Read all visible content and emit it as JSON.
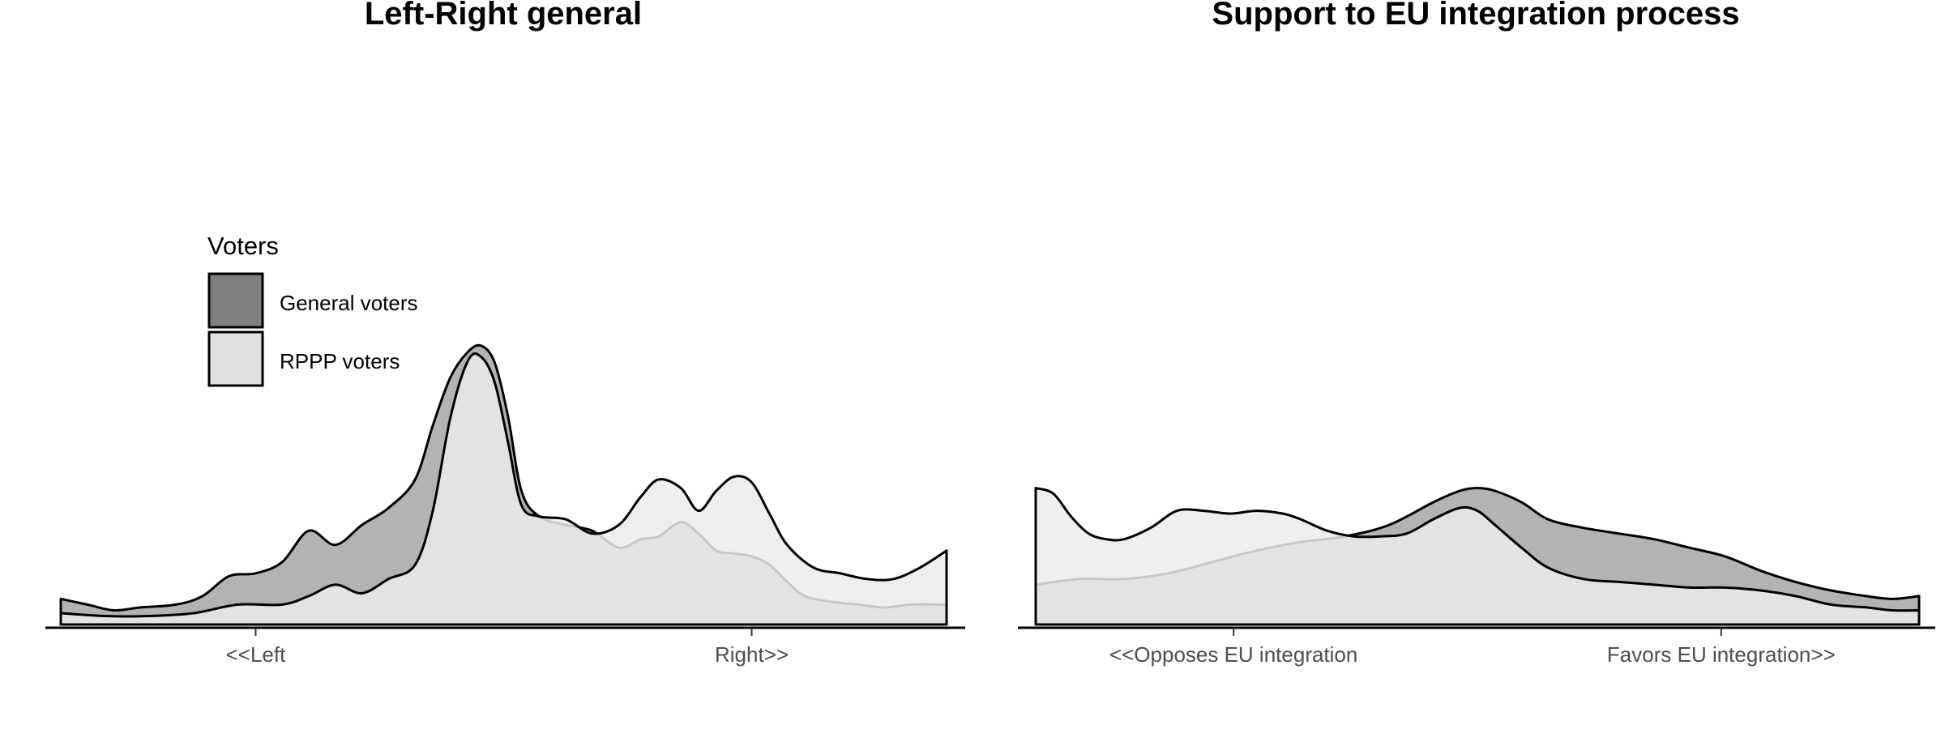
{
  "legend": {
    "title": "Voters",
    "items": [
      {
        "label": "General voters",
        "color": "#7f7f7f"
      },
      {
        "label": "RPPP voters",
        "color": "#e0e0e0"
      }
    ]
  },
  "colors": {
    "general_fill": "#b3b3b3",
    "rppp_fill": "#ebebeb",
    "outline": "#000000"
  },
  "chart_data": [
    {
      "type": "area",
      "title": "Left-Right general",
      "xlabel": "",
      "ylabel": "",
      "x_tick_labels": [
        {
          "at": 0.22,
          "label": "<<Left"
        },
        {
          "at": 0.78,
          "label": "Right>>"
        }
      ],
      "xlim": [
        0,
        1
      ],
      "ylim": [
        0,
        1
      ],
      "grid": false,
      "legend_position": "top-left",
      "series": [
        {
          "name": "General voters",
          "key": "general",
          "x": [
            0,
            0.03,
            0.06,
            0.09,
            0.13,
            0.16,
            0.19,
            0.22,
            0.25,
            0.28,
            0.31,
            0.34,
            0.37,
            0.4,
            0.42,
            0.44,
            0.46,
            0.475,
            0.49,
            0.505,
            0.52,
            0.54,
            0.57,
            0.6,
            0.63,
            0.655,
            0.675,
            0.7,
            0.72,
            0.74,
            0.76,
            0.78,
            0.8,
            0.82,
            0.84,
            0.87,
            0.9,
            0.93,
            0.96,
            1.0
          ],
          "y": [
            0.09,
            0.07,
            0.05,
            0.06,
            0.07,
            0.1,
            0.17,
            0.18,
            0.22,
            0.33,
            0.28,
            0.35,
            0.41,
            0.51,
            0.7,
            0.87,
            0.96,
            0.98,
            0.92,
            0.73,
            0.47,
            0.38,
            0.35,
            0.33,
            0.27,
            0.3,
            0.31,
            0.36,
            0.32,
            0.26,
            0.25,
            0.24,
            0.21,
            0.15,
            0.1,
            0.08,
            0.07,
            0.06,
            0.07,
            0.07
          ]
        },
        {
          "name": "RPPP voters",
          "key": "rppp",
          "x": [
            0,
            0.05,
            0.1,
            0.15,
            0.2,
            0.25,
            0.28,
            0.31,
            0.34,
            0.37,
            0.4,
            0.42,
            0.44,
            0.46,
            0.475,
            0.49,
            0.505,
            0.52,
            0.54,
            0.57,
            0.6,
            0.63,
            0.655,
            0.675,
            0.7,
            0.72,
            0.74,
            0.76,
            0.78,
            0.8,
            0.82,
            0.85,
            0.88,
            0.91,
            0.94,
            0.97,
            1.0
          ],
          "y": [
            0.04,
            0.03,
            0.03,
            0.04,
            0.07,
            0.07,
            0.1,
            0.14,
            0.11,
            0.16,
            0.21,
            0.4,
            0.73,
            0.93,
            0.94,
            0.85,
            0.64,
            0.42,
            0.38,
            0.37,
            0.32,
            0.35,
            0.45,
            0.51,
            0.48,
            0.4,
            0.47,
            0.52,
            0.5,
            0.39,
            0.28,
            0.2,
            0.18,
            0.16,
            0.16,
            0.2,
            0.26
          ]
        }
      ]
    },
    {
      "type": "area",
      "title": "Support to EU integration process",
      "xlabel": "",
      "ylabel": "",
      "x_tick_labels": [
        {
          "at": 0.224,
          "label": "<<Opposes EU integration"
        },
        {
          "at": 0.776,
          "label": "Favors EU integration>>"
        }
      ],
      "xlim": [
        0,
        1
      ],
      "ylim": [
        0,
        1
      ],
      "grid": false,
      "legend_position": "none",
      "series": [
        {
          "name": "General voters",
          "key": "general",
          "x": [
            0,
            0.05,
            0.1,
            0.15,
            0.2,
            0.25,
            0.3,
            0.35,
            0.4,
            0.45,
            0.48,
            0.5,
            0.52,
            0.55,
            0.58,
            0.62,
            0.66,
            0.7,
            0.74,
            0.78,
            0.82,
            0.86,
            0.9,
            0.94,
            0.97,
            1.0
          ],
          "y": [
            0.14,
            0.16,
            0.16,
            0.18,
            0.22,
            0.26,
            0.29,
            0.31,
            0.35,
            0.43,
            0.47,
            0.48,
            0.47,
            0.43,
            0.37,
            0.34,
            0.32,
            0.3,
            0.27,
            0.24,
            0.19,
            0.15,
            0.12,
            0.1,
            0.09,
            0.1
          ]
        },
        {
          "name": "RPPP voters",
          "key": "rppp",
          "x": [
            0,
            0.02,
            0.04,
            0.06,
            0.08,
            0.1,
            0.13,
            0.16,
            0.19,
            0.22,
            0.25,
            0.28,
            0.3,
            0.33,
            0.36,
            0.39,
            0.42,
            0.45,
            0.48,
            0.5,
            0.52,
            0.55,
            0.58,
            0.62,
            0.66,
            0.7,
            0.74,
            0.78,
            0.82,
            0.86,
            0.9,
            0.94,
            0.97,
            1.0
          ],
          "y": [
            0.48,
            0.46,
            0.38,
            0.32,
            0.3,
            0.3,
            0.34,
            0.4,
            0.4,
            0.39,
            0.4,
            0.39,
            0.37,
            0.33,
            0.31,
            0.31,
            0.32,
            0.37,
            0.41,
            0.4,
            0.35,
            0.27,
            0.2,
            0.16,
            0.15,
            0.14,
            0.13,
            0.13,
            0.12,
            0.1,
            0.07,
            0.06,
            0.05,
            0.05
          ]
        }
      ]
    }
  ]
}
